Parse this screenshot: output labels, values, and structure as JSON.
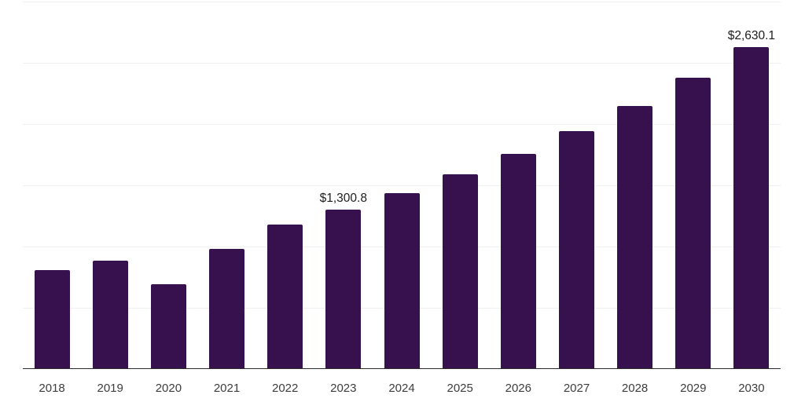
{
  "chart_data": {
    "type": "bar",
    "title": "",
    "xlabel": "",
    "ylabel": "",
    "categories": [
      "2018",
      "2019",
      "2020",
      "2021",
      "2022",
      "2023",
      "2024",
      "2025",
      "2026",
      "2027",
      "2028",
      "2029",
      "2030"
    ],
    "values": [
      810,
      885,
      693,
      981,
      1183,
      1300.8,
      1438.4,
      1590.6,
      1758.9,
      1944.9,
      2150.7,
      2378.2,
      2630.1
    ],
    "data_labels": [
      {
        "category": "2023",
        "text": "$1,300.8"
      },
      {
        "category": "2030",
        "text": "$2,630.1"
      }
    ],
    "ylim": [
      0,
      3000
    ],
    "gridline_step": 500,
    "grid": true,
    "y_tick_labels_visible": false,
    "legend": "none",
    "colors": {
      "bar": "#36114D",
      "gridline": "#f0eff3",
      "axis_line": "#2a2a2a",
      "tick_label": "#3d3d3d",
      "data_label": "#1c1c1c",
      "background": "#ffffff"
    }
  }
}
